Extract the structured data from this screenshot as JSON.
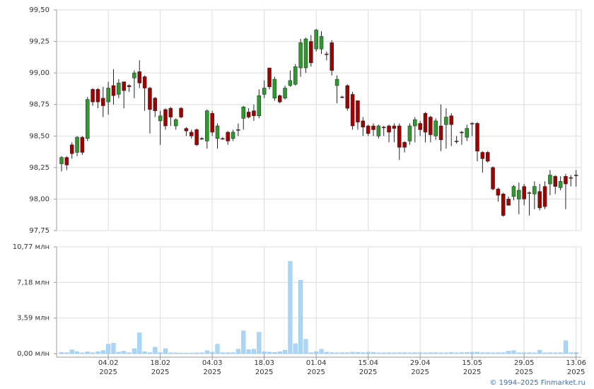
{
  "chart_data": [
    {
      "type": "candlestick",
      "open": [
        98.28,
        98.33,
        98.43,
        98.37,
        98.49,
        98.48,
        98.87,
        98.87,
        98.8,
        98.77,
        98.9,
        98.83,
        98.93,
        98.9,
        98.96,
        99.01,
        98.97,
        98.88,
        98.8,
        98.62,
        98.71,
        98.72,
        98.58,
        98.72,
        98.56,
        98.53,
        98.55,
        98.48,
        98.46,
        98.68,
        98.48,
        98.48,
        98.53,
        98.48,
        98.55,
        98.64,
        98.69,
        98.7,
        98.66,
        98.83,
        99.04,
        98.8,
        98.82,
        98.8,
        98.9,
        98.91,
        99.04,
        99.04,
        99.25,
        99.19,
        99.19,
        99.15,
        99.24,
        98.9,
        98.81,
        98.9,
        98.83,
        98.78,
        98.62,
        98.58,
        98.58,
        98.5,
        98.57,
        98.58,
        98.58,
        98.58,
        98.45,
        98.46,
        98.58,
        98.6,
        98.68,
        98.65,
        98.5,
        98.58,
        98.59,
        98.66,
        98.46,
        98.53,
        98.49,
        98.6,
        98.6,
        98.37,
        98.37,
        98.25,
        98.08,
        98.04,
        98.0,
        98.02,
        98.0,
        98.1,
        98.05,
        98.04,
        98.06,
        98.1,
        98.12,
        98.18,
        98.09,
        98.18,
        98.17,
        98.19
      ],
      "high": [
        98.34,
        98.34,
        98.45,
        98.5,
        98.5,
        98.81,
        98.88,
        98.88,
        98.89,
        98.93,
        99.03,
        98.95,
        98.93,
        98.91,
        99.02,
        99.1,
        98.98,
        98.89,
        98.81,
        98.7,
        98.72,
        98.73,
        98.64,
        98.73,
        98.57,
        98.55,
        98.56,
        98.49,
        98.71,
        98.7,
        98.6,
        98.49,
        98.54,
        98.55,
        98.6,
        98.74,
        98.72,
        98.75,
        98.87,
        98.94,
        99.04,
        98.97,
        98.83,
        98.9,
        99.02,
        99.07,
        99.27,
        99.28,
        99.3,
        99.35,
        99.33,
        99.17,
        99.26,
        98.98,
        98.82,
        98.91,
        98.85,
        98.78,
        98.65,
        98.59,
        98.6,
        98.59,
        98.58,
        98.59,
        98.6,
        98.6,
        98.46,
        98.6,
        98.65,
        98.62,
        98.69,
        98.66,
        98.64,
        98.75,
        98.72,
        98.68,
        98.5,
        98.54,
        98.59,
        98.61,
        98.61,
        98.38,
        98.38,
        98.26,
        98.09,
        98.05,
        98.02,
        98.11,
        98.13,
        98.12,
        98.06,
        98.14,
        98.12,
        98.14,
        98.23,
        98.19,
        98.18,
        98.2,
        98.19,
        98.23
      ],
      "low": [
        98.22,
        98.23,
        98.32,
        98.34,
        98.35,
        98.46,
        98.74,
        98.72,
        98.65,
        98.67,
        98.75,
        98.8,
        98.72,
        98.85,
        98.8,
        98.88,
        98.7,
        98.52,
        98.65,
        98.43,
        98.55,
        98.58,
        98.55,
        98.64,
        98.5,
        98.48,
        98.42,
        98.47,
        98.4,
        98.5,
        98.4,
        98.47,
        98.43,
        98.46,
        98.5,
        98.55,
        98.64,
        98.62,
        98.64,
        98.8,
        98.87,
        98.78,
        98.76,
        98.79,
        98.89,
        98.9,
        98.97,
        99.0,
        99.05,
        99.17,
        99.15,
        99.1,
        98.98,
        98.76,
        98.8,
        98.7,
        98.55,
        98.55,
        98.5,
        98.5,
        98.5,
        98.48,
        98.5,
        98.45,
        98.45,
        98.31,
        98.37,
        98.43,
        98.45,
        98.5,
        98.45,
        98.45,
        98.47,
        98.38,
        98.4,
        98.42,
        98.44,
        98.43,
        98.46,
        98.5,
        98.3,
        98.21,
        98.29,
        98.07,
        97.98,
        97.86,
        97.95,
        97.99,
        97.88,
        97.95,
        97.87,
        97.92,
        97.91,
        97.92,
        98.03,
        98.04,
        98.07,
        97.92,
        98.1,
        98.1
      ],
      "close": [
        98.33,
        98.27,
        98.36,
        98.49,
        98.37,
        98.79,
        98.77,
        98.77,
        98.74,
        98.88,
        98.82,
        98.92,
        98.86,
        98.89,
        99.0,
        98.92,
        98.88,
        98.71,
        98.7,
        98.66,
        98.58,
        98.65,
        98.63,
        98.65,
        98.54,
        98.5,
        98.43,
        98.48,
        98.7,
        98.53,
        98.58,
        98.48,
        98.46,
        98.53,
        98.55,
        98.73,
        98.65,
        98.66,
        98.82,
        98.88,
        98.89,
        98.95,
        98.77,
        98.88,
        98.94,
        99.05,
        99.24,
        99.27,
        99.08,
        99.34,
        99.29,
        99.15,
        99.02,
        98.95,
        98.81,
        98.72,
        98.58,
        98.61,
        98.57,
        98.52,
        98.55,
        98.58,
        98.57,
        98.53,
        98.56,
        98.41,
        98.41,
        98.58,
        98.63,
        98.55,
        98.53,
        98.51,
        98.62,
        98.47,
        98.65,
        98.59,
        98.46,
        98.53,
        98.56,
        98.6,
        98.38,
        98.32,
        98.3,
        98.08,
        98.03,
        97.87,
        97.95,
        98.1,
        98.07,
        98.0,
        98.05,
        98.1,
        97.93,
        97.94,
        98.19,
        98.1,
        98.14,
        98.12,
        98.17,
        98.19
      ],
      "up_color": "#2e9a2e",
      "down_color": "#a00000",
      "ylim": [
        97.75,
        99.5
      ],
      "yticks": [
        {
          "value": 97.75,
          "label": "97,75"
        },
        {
          "value": 98.0,
          "label": "98,00"
        },
        {
          "value": 98.25,
          "label": "98,25"
        },
        {
          "value": 98.5,
          "label": "98,50"
        },
        {
          "value": 98.75,
          "label": "98,75"
        },
        {
          "value": 99.0,
          "label": "99,00"
        },
        {
          "value": 99.25,
          "label": "99,25"
        },
        {
          "value": 99.5,
          "label": "99,50"
        }
      ],
      "grid": true
    },
    {
      "type": "bar",
      "categories": [
        null,
        null,
        null,
        null,
        null,
        null,
        null,
        null,
        null,
        "04.02\n2025",
        null,
        null,
        null,
        null,
        null,
        null,
        null,
        null,
        null,
        "18.02\n2025",
        null,
        null,
        null,
        null,
        null,
        null,
        null,
        null,
        null,
        "04.03\n2025",
        null,
        null,
        null,
        null,
        null,
        null,
        null,
        null,
        null,
        "18.03\n2025",
        null,
        null,
        null,
        null,
        null,
        null,
        null,
        null,
        null,
        "01.04\n2025",
        null,
        null,
        null,
        null,
        null,
        null,
        null,
        null,
        null,
        "15.04\n2025",
        null,
        null,
        null,
        null,
        null,
        null,
        null,
        null,
        null,
        "29.04\n2025",
        null,
        null,
        null,
        null,
        null,
        null,
        null,
        null,
        null,
        "15.05\n2025",
        null,
        null,
        null,
        null,
        null,
        null,
        null,
        null,
        null,
        "29.05\n2025",
        null,
        null,
        null,
        null,
        null,
        null,
        null,
        null,
        null,
        "13.06\n2025"
      ],
      "values": [
        0.12,
        0.1,
        0.38,
        0.2,
        0.08,
        0.18,
        0.1,
        0.2,
        0.32,
        0.95,
        1.05,
        0.15,
        0.25,
        0.1,
        0.5,
        2.1,
        0.2,
        0.1,
        0.65,
        0.1,
        0.5,
        0.08,
        0.08,
        0.06,
        0.06,
        0.06,
        0.08,
        0.08,
        0.3,
        0.15,
        0.95,
        0.1,
        0.1,
        0.1,
        0.45,
        2.3,
        0.4,
        0.45,
        2.15,
        0.2,
        0.15,
        0.12,
        0.2,
        0.35,
        9.3,
        1.0,
        7.4,
        1.45,
        0.1,
        0.2,
        0.45,
        0.15,
        0.1,
        0.08,
        0.1,
        0.1,
        0.15,
        0.12,
        0.1,
        0.15,
        0.12,
        0.08,
        0.08,
        0.1,
        0.08,
        0.1,
        0.1,
        0.08,
        0.1,
        0.1,
        0.08,
        0.1,
        0.1,
        0.08,
        0.08,
        0.12,
        0.08,
        0.1,
        0.12,
        0.15,
        0.15,
        0.1,
        0.1,
        0.08,
        0.1,
        0.1,
        0.25,
        0.3,
        0.08,
        0.1,
        0.1,
        0.08,
        0.35,
        0.08,
        0.1,
        0.08,
        0.1,
        1.3,
        0.1,
        0.12
      ],
      "color": "#a9d5f7",
      "ylim": [
        0,
        10.77
      ],
      "yticks": [
        {
          "value": 0,
          "label": "0,00 млн"
        },
        {
          "value": 3.59,
          "label": "3,59 млн"
        },
        {
          "value": 7.18,
          "label": "7,18 млн"
        },
        {
          "value": 10.77,
          "label": "10,77 млн"
        }
      ],
      "grid": true
    }
  ],
  "source": "© 1994–2025 Finmarket.ru"
}
